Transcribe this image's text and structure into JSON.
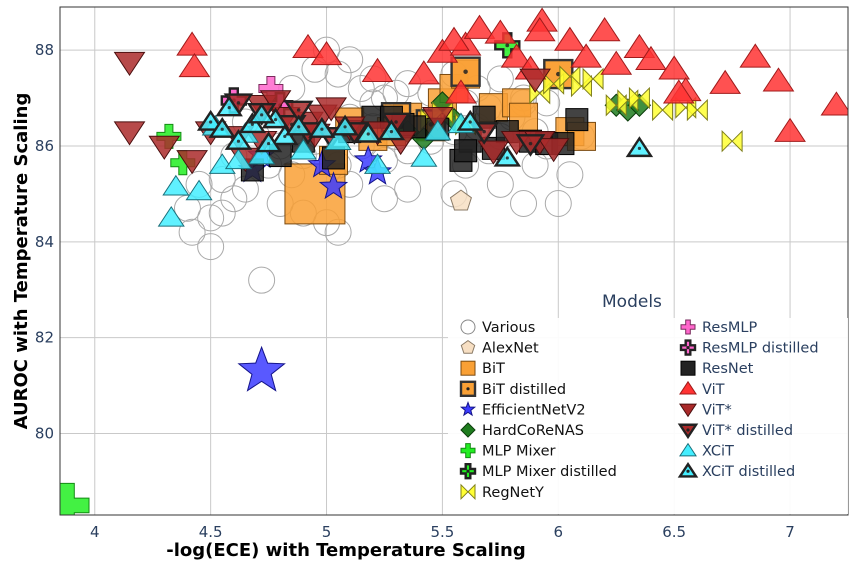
{
  "chart_data": {
    "type": "scatter",
    "xlabel": "-log(ECE) with Temperature Scaling",
    "ylabel": "AUROC with Temperature Scaling",
    "xlim": [
      3.85,
      7.25
    ],
    "ylim": [
      78.3,
      88.9
    ],
    "xticks": [
      4,
      4.5,
      5,
      5.5,
      6,
      6.5,
      7
    ],
    "xtick_labels": [
      "4",
      "4.5",
      "5",
      "5.5",
      "6",
      "6.5",
      "7"
    ],
    "yticks": [
      80,
      82,
      84,
      86,
      88
    ],
    "ytick_labels": [
      "80",
      "82",
      "84",
      "86",
      "88"
    ],
    "grid": true,
    "legend": {
      "title": "Models",
      "placement": "bottom-right",
      "entries": [
        "Various",
        "AlexNet",
        "BiT",
        "BiT distilled",
        "EfficientNetV2",
        "HardCoReNAS",
        "MLP Mixer",
        "MLP Mixer distilled",
        "RegNetY",
        "ResMLP",
        "ResMLP distilled",
        "ResNet",
        "ViT",
        "ViT*",
        "ViT* distilled",
        "XCiT",
        "XCiT distilled"
      ]
    },
    "series": [
      {
        "name": "Various",
        "marker": "circle",
        "color": "#ffffff",
        "edge": "#aaaaaa",
        "points": [
          [
            4.42,
            84.2
          ],
          [
            4.5,
            83.9
          ],
          [
            4.55,
            84.6
          ],
          [
            4.6,
            84.9
          ],
          [
            4.65,
            85.1
          ],
          [
            4.72,
            83.2
          ],
          [
            4.8,
            84.8
          ],
          [
            4.85,
            85.4
          ],
          [
            4.9,
            85.8
          ],
          [
            4.95,
            86.1
          ],
          [
            5.05,
            85.6
          ],
          [
            5.1,
            85.2
          ],
          [
            5.15,
            86.0
          ],
          [
            5.2,
            86.4
          ],
          [
            5.25,
            85.7
          ],
          [
            5.3,
            86.2
          ],
          [
            5.35,
            85.9
          ],
          [
            5.4,
            86.5
          ],
          [
            5.45,
            86.1
          ],
          [
            5.5,
            86.7
          ],
          [
            5.55,
            86.3
          ],
          [
            5.6,
            86.9
          ],
          [
            5.65,
            86.4
          ],
          [
            5.7,
            86.8
          ],
          [
            5.75,
            86.2
          ],
          [
            5.8,
            86.6
          ],
          [
            5.85,
            86.9
          ],
          [
            5.9,
            86.3
          ],
          [
            5.95,
            86.0
          ],
          [
            6.0,
            84.8
          ],
          [
            6.05,
            85.4
          ],
          [
            4.85,
            87.2
          ],
          [
            4.95,
            87.6
          ],
          [
            5.0,
            88.0
          ],
          [
            5.05,
            87.5
          ],
          [
            5.1,
            87.8
          ],
          [
            5.15,
            87.2
          ],
          [
            5.2,
            87.4
          ],
          [
            5.25,
            87.0
          ],
          [
            5.35,
            87.3
          ],
          [
            5.45,
            87.1
          ],
          [
            5.55,
            87.5
          ],
          [
            5.65,
            87.2
          ],
          [
            5.75,
            87.4
          ],
          [
            5.85,
            87.0
          ],
          [
            5.95,
            86.9
          ],
          [
            4.7,
            86.2
          ],
          [
            4.75,
            85.6
          ],
          [
            4.8,
            86.0
          ],
          [
            4.9,
            84.6
          ],
          [
            5.0,
            84.4
          ],
          [
            5.05,
            84.2
          ],
          [
            5.25,
            84.9
          ],
          [
            5.35,
            85.1
          ],
          [
            5.55,
            85.0
          ],
          [
            5.75,
            85.2
          ],
          [
            5.85,
            84.8
          ],
          [
            6.1,
            86.2
          ],
          [
            4.6,
            85.8
          ],
          [
            4.65,
            86.5
          ],
          [
            4.55,
            85.3
          ],
          [
            4.45,
            85.2
          ],
          [
            4.5,
            84.5
          ],
          [
            4.4,
            84.7
          ],
          [
            5.1,
            86.6
          ],
          [
            5.2,
            86.9
          ],
          [
            5.3,
            87.1
          ],
          [
            5.6,
            85.6
          ],
          [
            5.7,
            85.9
          ],
          [
            5.9,
            85.6
          ]
        ]
      },
      {
        "name": "AlexNet",
        "marker": "pentagon",
        "color": "#f7dfc3",
        "edge": "#8a7a66",
        "points": [
          [
            5.58,
            84.85
          ]
        ]
      },
      {
        "name": "BiT",
        "marker": "square",
        "color": "#f9a035",
        "edge": "#7a4a10",
        "points": [
          [
            4.95,
            85.0
          ],
          [
            5.1,
            86.5
          ],
          [
            5.2,
            86.2
          ],
          [
            5.35,
            86.6
          ],
          [
            5.45,
            86.4
          ],
          [
            5.5,
            86.9
          ],
          [
            5.55,
            87.2
          ],
          [
            5.6,
            87.5
          ],
          [
            5.72,
            86.8
          ],
          [
            5.82,
            86.9
          ],
          [
            5.85,
            86.6
          ],
          [
            6.05,
            86.3
          ],
          [
            6.1,
            86.2
          ],
          [
            5.03,
            85.7
          ],
          [
            5.28,
            86.3
          ],
          [
            6.0,
            87.5
          ]
        ]
      },
      {
        "name": "BiT distilled",
        "marker": "square-dot",
        "color": "#f9a035",
        "edge": "#333333",
        "points": [
          [
            5.6,
            87.55
          ],
          [
            6.0,
            87.5
          ],
          [
            5.3,
            86.6
          ],
          [
            5.45,
            86.45
          ]
        ]
      },
      {
        "name": "EfficientNetV2",
        "marker": "star",
        "color": "#3c3cff",
        "edge": "#14148a",
        "points": [
          [
            4.72,
            81.3
          ],
          [
            4.98,
            85.6
          ],
          [
            5.03,
            85.15
          ],
          [
            5.18,
            85.7
          ],
          [
            5.22,
            85.45
          ],
          [
            4.68,
            85.5
          ],
          [
            4.72,
            85.8
          ]
        ]
      },
      {
        "name": "HardCoReNAS",
        "marker": "diamond",
        "color": "#1f7d1f",
        "edge": "#0b3d0b",
        "points": [
          [
            6.25,
            86.85
          ],
          [
            6.3,
            86.75
          ],
          [
            6.35,
            86.85
          ],
          [
            5.35,
            86.3
          ],
          [
            5.42,
            86.15
          ],
          [
            5.55,
            86.55
          ],
          [
            5.5,
            86.9
          ]
        ]
      },
      {
        "name": "MLP Mixer",
        "marker": "cross",
        "color": "#22ee22",
        "edge": "#138a13",
        "points": [
          [
            3.88,
            78.5
          ],
          [
            4.32,
            86.2
          ],
          [
            4.38,
            85.65
          ]
        ]
      },
      {
        "name": "MLP Mixer distilled",
        "marker": "cross-dot",
        "color": "#22ee22",
        "edge": "#222222",
        "points": [
          [
            5.78,
            88.1
          ]
        ]
      },
      {
        "name": "RegNetY",
        "marker": "bowtie",
        "color": "#ffff33",
        "edge": "#7f7f1a",
        "points": [
          [
            5.92,
            87.1
          ],
          [
            5.98,
            87.3
          ],
          [
            6.05,
            87.45
          ],
          [
            6.1,
            87.25
          ],
          [
            6.15,
            87.4
          ],
          [
            6.25,
            86.85
          ],
          [
            6.3,
            86.95
          ],
          [
            6.35,
            87.0
          ],
          [
            6.45,
            86.75
          ],
          [
            6.55,
            86.8
          ],
          [
            6.6,
            86.75
          ],
          [
            6.75,
            86.1
          ],
          [
            5.45,
            86.55
          ],
          [
            5.5,
            86.7
          ],
          [
            5.6,
            86.45
          ]
        ]
      },
      {
        "name": "ResMLP",
        "marker": "cross",
        "color": "#ff66cc",
        "edge": "#7a2a5c",
        "points": [
          [
            4.6,
            86.95
          ],
          [
            4.76,
            87.2
          ],
          [
            4.8,
            86.85
          ]
        ]
      },
      {
        "name": "ResMLP distilled",
        "marker": "cross-dot",
        "color": "#ff66cc",
        "edge": "#222222",
        "points": [
          [
            4.6,
            86.95
          ],
          [
            4.8,
            86.85
          ]
        ]
      },
      {
        "name": "ResNet",
        "marker": "square",
        "color": "#222222",
        "edge": "#000000",
        "points": [
          [
            4.68,
            85.5
          ],
          [
            4.8,
            85.8
          ],
          [
            4.9,
            86.1
          ],
          [
            5.03,
            85.75
          ],
          [
            5.1,
            86.3
          ],
          [
            5.2,
            86.6
          ],
          [
            5.28,
            86.6
          ],
          [
            5.38,
            86.4
          ],
          [
            5.48,
            86.35
          ],
          [
            5.58,
            85.7
          ],
          [
            5.62,
            86.1
          ],
          [
            5.68,
            86.6
          ],
          [
            5.72,
            85.95
          ],
          [
            5.78,
            86.3
          ],
          [
            5.88,
            86.1
          ],
          [
            5.95,
            86.05
          ],
          [
            6.02,
            86.05
          ],
          [
            6.08,
            86.55
          ],
          [
            5.6,
            85.9
          ],
          [
            5.33,
            86.45
          ]
        ]
      },
      {
        "name": "ViT",
        "marker": "triangle-up",
        "color": "#ff3333",
        "edge": "#a01a1a",
        "points": [
          [
            4.42,
            88.1
          ],
          [
            4.43,
            87.65
          ],
          [
            4.92,
            88.05
          ],
          [
            5.0,
            87.9
          ],
          [
            5.22,
            87.55
          ],
          [
            5.42,
            87.5
          ],
          [
            5.5,
            87.95
          ],
          [
            5.6,
            88.1
          ],
          [
            5.66,
            88.45
          ],
          [
            5.75,
            88.35
          ],
          [
            5.82,
            87.85
          ],
          [
            5.93,
            88.6
          ],
          [
            6.05,
            88.2
          ],
          [
            6.12,
            87.85
          ],
          [
            6.2,
            88.4
          ],
          [
            6.25,
            87.7
          ],
          [
            6.35,
            88.05
          ],
          [
            6.4,
            87.8
          ],
          [
            6.5,
            87.6
          ],
          [
            6.55,
            87.15
          ],
          [
            6.72,
            87.3
          ],
          [
            6.85,
            87.85
          ],
          [
            6.95,
            87.35
          ],
          [
            7.0,
            86.3
          ],
          [
            7.2,
            86.85
          ],
          [
            5.92,
            88.4
          ],
          [
            5.55,
            88.2
          ],
          [
            6.52,
            87.1
          ],
          [
            5.58,
            87.1
          ],
          [
            5.88,
            87.6
          ]
        ]
      },
      {
        "name": "ViT*",
        "marker": "triangle-down",
        "color": "#aa2a2a",
        "edge": "#4a0f0f",
        "points": [
          [
            4.15,
            87.75
          ],
          [
            4.15,
            86.3
          ],
          [
            4.3,
            86.0
          ],
          [
            4.42,
            85.7
          ],
          [
            4.5,
            86.3
          ],
          [
            4.62,
            86.2
          ],
          [
            4.72,
            86.1
          ],
          [
            4.82,
            86.6
          ],
          [
            4.92,
            86.5
          ],
          [
            4.98,
            86.65
          ],
          [
            5.02,
            86.8
          ],
          [
            5.1,
            86.4
          ],
          [
            5.22,
            86.3
          ],
          [
            5.32,
            86.1
          ],
          [
            5.48,
            86.6
          ],
          [
            5.72,
            85.9
          ],
          [
            5.82,
            86.1
          ],
          [
            5.92,
            86.1
          ],
          [
            5.98,
            85.95
          ],
          [
            5.9,
            87.4
          ],
          [
            4.72,
            86.85
          ],
          [
            4.78,
            86.95
          ],
          [
            4.95,
            86.25
          ],
          [
            4.65,
            85.75
          ]
        ]
      },
      {
        "name": "ViT* distilled",
        "marker": "triangle-down-dot",
        "color": "#aa2a2a",
        "edge": "#222222",
        "points": [
          [
            4.62,
            86.9
          ],
          [
            4.72,
            86.7
          ],
          [
            4.85,
            86.45
          ],
          [
            4.92,
            86.3
          ],
          [
            5.02,
            86.2
          ],
          [
            5.12,
            86.3
          ],
          [
            5.3,
            86.5
          ],
          [
            5.68,
            86.3
          ],
          [
            5.88,
            86.05
          ],
          [
            4.88,
            86.75
          ]
        ]
      },
      {
        "name": "XCiT",
        "marker": "triangle-up",
        "color": "#44eeff",
        "edge": "#1a6f7a",
        "points": [
          [
            4.33,
            84.5
          ],
          [
            4.35,
            85.15
          ],
          [
            4.45,
            85.05
          ],
          [
            4.55,
            85.6
          ],
          [
            4.62,
            85.7
          ],
          [
            4.72,
            85.8
          ],
          [
            4.9,
            85.9
          ],
          [
            5.05,
            86.1
          ],
          [
            5.22,
            85.6
          ],
          [
            5.42,
            85.75
          ],
          [
            5.48,
            86.3
          ],
          [
            5.58,
            86.45
          ],
          [
            4.52,
            86.4
          ],
          [
            4.65,
            86.25
          ]
        ]
      },
      {
        "name": "XCiT distilled",
        "marker": "triangle-up-dot",
        "color": "#44eeff",
        "edge": "#222222",
        "points": [
          [
            4.5,
            86.5
          ],
          [
            4.55,
            86.35
          ],
          [
            4.62,
            86.1
          ],
          [
            4.68,
            86.45
          ],
          [
            4.78,
            86.55
          ],
          [
            4.82,
            86.2
          ],
          [
            4.88,
            86.4
          ],
          [
            4.98,
            86.35
          ],
          [
            5.08,
            86.4
          ],
          [
            5.18,
            86.25
          ],
          [
            5.28,
            86.3
          ],
          [
            5.62,
            86.5
          ],
          [
            5.78,
            85.75
          ],
          [
            6.35,
            85.95
          ],
          [
            4.72,
            86.65
          ],
          [
            4.58,
            86.8
          ],
          [
            4.75,
            86.05
          ]
        ]
      }
    ]
  }
}
